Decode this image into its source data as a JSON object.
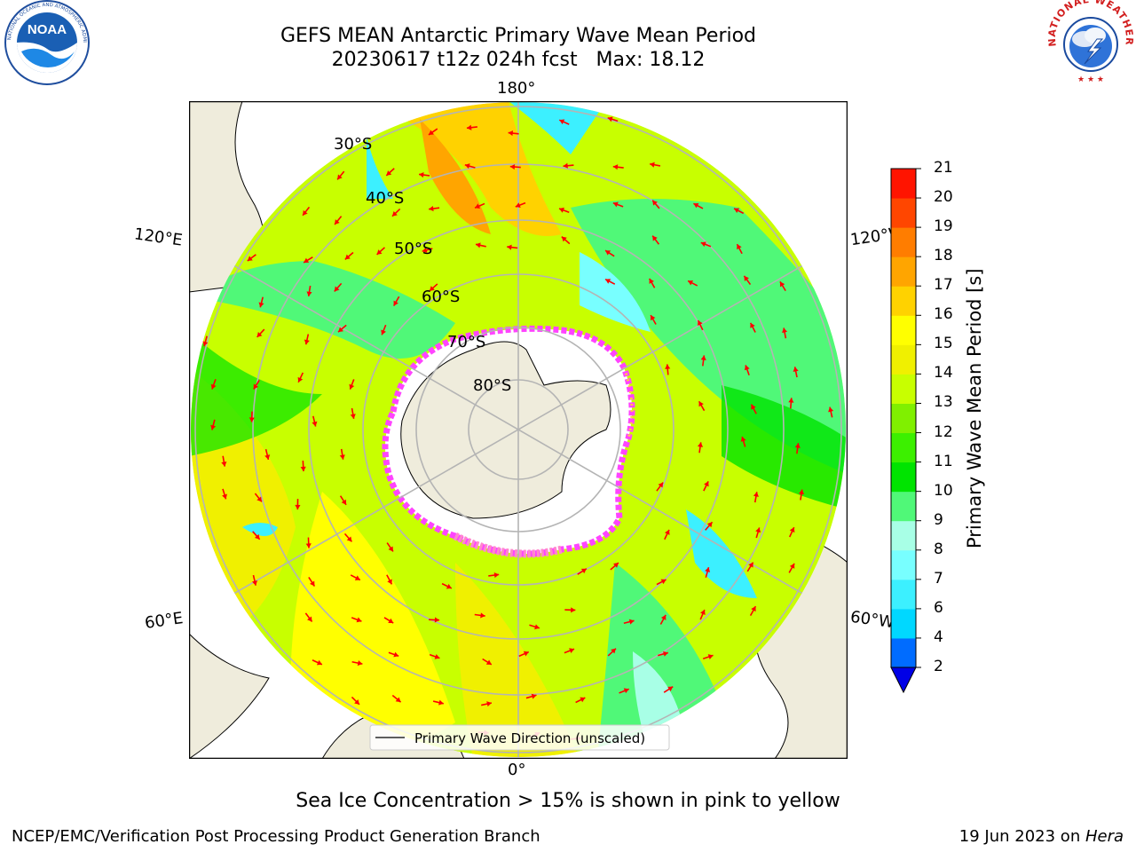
{
  "header": {
    "title_line1": "GEFS MEAN Antarctic Primary Wave Mean Period",
    "title_line2": "20230617 t12z 024h fcst   Max: 18.12"
  },
  "logos": {
    "left": "noaa-logo",
    "left_text": "NOAA",
    "left_ring_text": "NATIONAL OCEANIC AND ATMOSPHERIC ADMINISTRATION · U.S. DEPARTMENT OF COMMERCE",
    "right": "nws-logo",
    "right_ring_text": "NATIONAL WEATHER SERVICE"
  },
  "map": {
    "projection": "south-polar-stereographic",
    "longitude_labels": {
      "top": "180°",
      "bottom": "0°",
      "upper_left": "120°E",
      "upper_right": "120°W",
      "lower_left": "60°E",
      "lower_right": "60°W"
    },
    "latitude_labels": [
      "30°S",
      "40°S",
      "50°S",
      "60°S",
      "70°S",
      "80°S"
    ],
    "legend": "Primary Wave Direction (unscaled)",
    "sea_ice_colors": [
      "#ff44ff",
      "#ff88cc",
      "#ffcc44"
    ],
    "arrow_color": "#ff0000",
    "land_color": "#efecdc"
  },
  "colorbar": {
    "label": "Primary Wave Mean Period [s]",
    "ticks": [
      "2",
      "4",
      "6",
      "7",
      "8",
      "9",
      "10",
      "11",
      "12",
      "13",
      "14",
      "15",
      "16",
      "17",
      "18",
      "19",
      "20",
      "21"
    ],
    "colors": [
      "#0000e6",
      "#006cff",
      "#00d8ff",
      "#3cf0ff",
      "#78ffff",
      "#a8ffe6",
      "#50f878",
      "#00e400",
      "#3cf000",
      "#80f000",
      "#c8ff00",
      "#f0f000",
      "#ffff00",
      "#ffd200",
      "#ffa500",
      "#ff7d00",
      "#ff4600",
      "#ff1400",
      "#ff0000"
    ],
    "extend": "min"
  },
  "caption": "Sea Ice Concentration > 15% is shown in pink to yellow",
  "footer": {
    "credit": "NCEP/EMC/Verification Post Processing Product Generation Branch",
    "date": "19 Jun 2023 on ",
    "host": "Hera"
  }
}
